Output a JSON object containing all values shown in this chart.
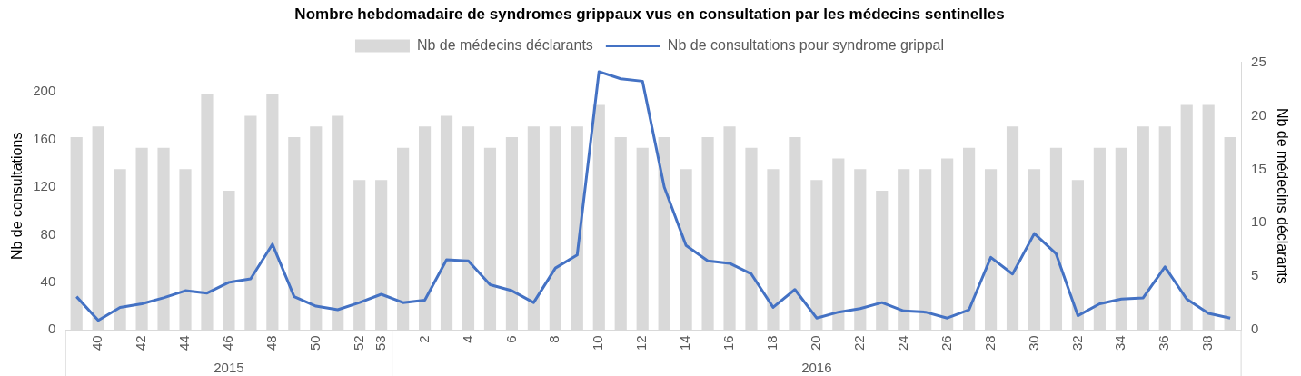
{
  "chart_data": {
    "type": "bar",
    "title": "Nombre hebdomadaire de syndromes grippaux vus en consultation par les médecins sentinelles",
    "ylabel": "Nb de consultations",
    "y2label": "Nb de médecins déclarants",
    "categories": [
      null,
      "40",
      null,
      "42",
      null,
      "44",
      null,
      "46",
      null,
      "48",
      null,
      "50",
      null,
      "52",
      "53",
      null,
      "2",
      null,
      "4",
      null,
      "6",
      null,
      "8",
      null,
      "10",
      null,
      "12",
      null,
      "14",
      null,
      "16",
      null,
      "18",
      null,
      "20",
      null,
      "22",
      null,
      "24",
      null,
      "26",
      null,
      "28",
      null,
      "30",
      null,
      "32",
      null,
      "34",
      null,
      "36",
      null,
      "38",
      null
    ],
    "series": [
      {
        "name": "Nb de médecins déclarants",
        "axis": "y2",
        "color": "#d9d9d9",
        "values": [
          18,
          19,
          15,
          17,
          17,
          15,
          22,
          13,
          20,
          22,
          18,
          19,
          20,
          14,
          14,
          17,
          19,
          20,
          19,
          17,
          18,
          19,
          19,
          19,
          21,
          18,
          17,
          18,
          15,
          18,
          19,
          17,
          15,
          18,
          14,
          16,
          15,
          13,
          15,
          15,
          16,
          17,
          15,
          19,
          15,
          17,
          14,
          17,
          17,
          19,
          19,
          21,
          21,
          18
        ]
      },
      {
        "name": "Nb de consultations pour syndrome grippal",
        "type": "line",
        "color": "#4472c4",
        "values": [
          28,
          8,
          19,
          22,
          27,
          33,
          31,
          40,
          43,
          72,
          28,
          20,
          17,
          23,
          30,
          23,
          25,
          59,
          58,
          38,
          33,
          23,
          52,
          63,
          217,
          211,
          209,
          120,
          71,
          58,
          56,
          47,
          19,
          34,
          10,
          15,
          18,
          23,
          16,
          15,
          10,
          17,
          61,
          47,
          81,
          64,
          12,
          22,
          26,
          27,
          53,
          26,
          14,
          10
        ]
      }
    ],
    "ylim": [
      0,
      225
    ],
    "yticks": [
      0,
      40,
      80,
      120,
      160,
      200
    ],
    "y2lim": [
      0,
      25
    ],
    "y2ticks": [
      0,
      5,
      10,
      15,
      20,
      25
    ],
    "annotations": [
      "2015",
      "2016"
    ],
    "grid": false,
    "legend": "top",
    "marker": "none"
  }
}
